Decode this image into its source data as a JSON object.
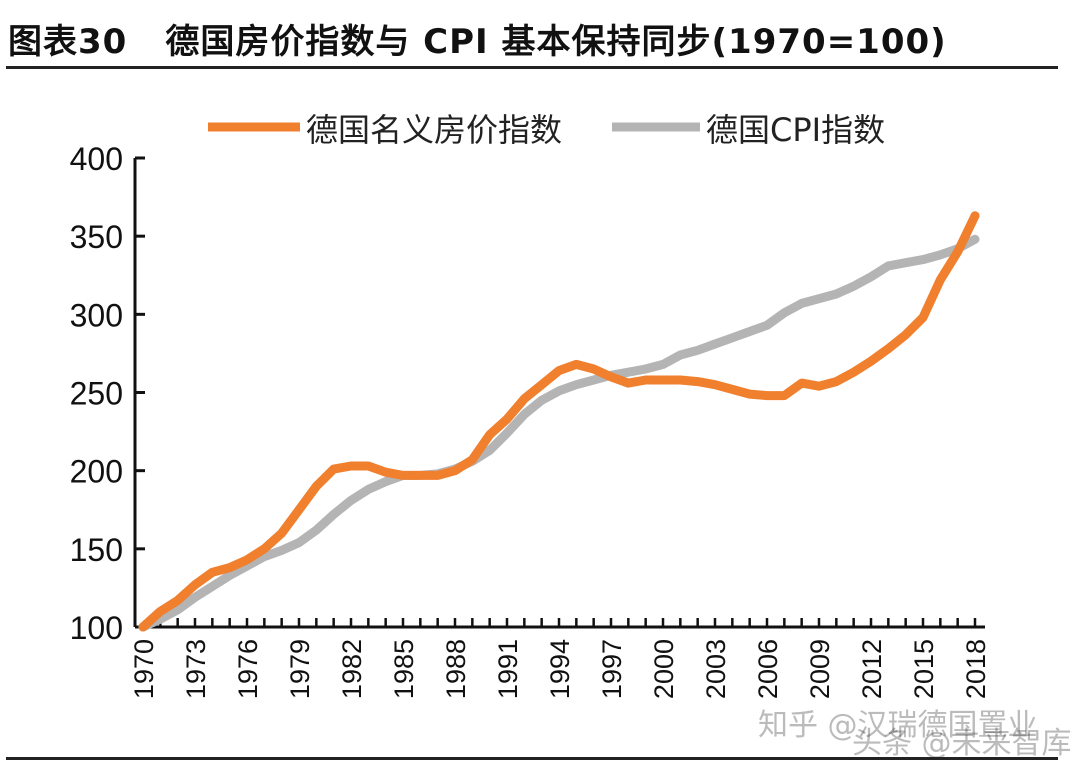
{
  "title": {
    "label": "图表30",
    "text": "德国房价指数与 CPI 基本保持同步(1970=100)"
  },
  "watermark": {
    "line1": "知乎 @汉瑞德国置业",
    "line2": "头条 @未来智库"
  },
  "chart_data": {
    "type": "line",
    "title": "德国房价指数与 CPI 基本保持同步(1970=100)",
    "xlabel": "",
    "ylabel": "",
    "xlim": [
      1970,
      2018
    ],
    "ylim": [
      100,
      400
    ],
    "yticks": [
      100,
      150,
      200,
      250,
      300,
      350,
      400
    ],
    "xticks": [
      1970,
      1973,
      1976,
      1979,
      1982,
      1985,
      1988,
      1991,
      1994,
      1997,
      2000,
      2003,
      2006,
      2009,
      2012,
      2015,
      2018
    ],
    "grid": false,
    "legend": "top",
    "x": [
      1970,
      1971,
      1972,
      1973,
      1974,
      1975,
      1976,
      1977,
      1978,
      1979,
      1980,
      1981,
      1982,
      1983,
      1984,
      1985,
      1986,
      1987,
      1988,
      1989,
      1990,
      1991,
      1992,
      1993,
      1994,
      1995,
      1996,
      1997,
      1998,
      1999,
      2000,
      2001,
      2002,
      2003,
      2004,
      2005,
      2006,
      2007,
      2008,
      2009,
      2010,
      2011,
      2012,
      2013,
      2014,
      2015,
      2016,
      2017,
      2018
    ],
    "series": [
      {
        "name": "德国名义房价指数",
        "color": "#F07F2E",
        "values": [
          100,
          110,
          117,
          127,
          135,
          138,
          143,
          150,
          160,
          175,
          190,
          201,
          203,
          203,
          199,
          197,
          197,
          197,
          200,
          207,
          223,
          233,
          246,
          255,
          264,
          268,
          265,
          260,
          256,
          258,
          258,
          258,
          257,
          255,
          252,
          249,
          248,
          248,
          256,
          254,
          257,
          263,
          270,
          278,
          287,
          298,
          322,
          340,
          363
        ]
      },
      {
        "name": "德国CPI指数",
        "color": "#B4B4B4",
        "values": [
          100,
          105,
          111,
          119,
          126,
          133,
          139,
          145,
          149,
          154,
          162,
          172,
          181,
          188,
          193,
          197,
          197,
          198,
          201,
          206,
          213,
          224,
          236,
          245,
          251,
          255,
          258,
          261,
          263,
          265,
          268,
          274,
          277,
          281,
          285,
          289,
          293,
          301,
          307,
          310,
          313,
          318,
          324,
          331,
          333,
          335,
          338,
          342,
          348
        ]
      }
    ]
  }
}
